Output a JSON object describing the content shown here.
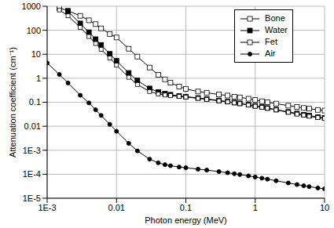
{
  "chart_data": {
    "type": "line",
    "x_label": "Photon energy (MeV)",
    "y_label": "Attenuation coefficient (cm⁻¹)",
    "log": true,
    "grid": true,
    "legend": "upper right",
    "xlim": [
      0.001,
      10
    ],
    "xticks": [
      {
        "value": 0.001,
        "label": "1E-3"
      },
      0.01,
      0.1,
      1,
      10
    ],
    "ylim": [
      1e-05,
      1000
    ],
    "yticks": [
      {
        "value": 1e-05,
        "label": "1E-5"
      },
      {
        "value": 0.0001,
        "label": "1E-4"
      },
      {
        "value": 0.001,
        "label": "1E-3"
      },
      0.01,
      0.1,
      1,
      10,
      100,
      1000
    ],
    "x": [
      0.001,
      0.0015,
      0.002,
      0.003,
      0.004,
      0.005,
      0.006,
      0.008,
      0.01,
      0.015,
      0.02,
      0.03,
      0.04,
      0.05,
      0.06,
      0.08,
      0.1,
      0.15,
      0.2,
      0.3,
      0.4,
      0.5,
      0.6,
      0.8,
      1,
      1.25,
      1.5,
      2,
      3,
      4,
      5,
      6,
      8,
      10
    ],
    "series": [
      {
        "name": "Bone",
        "color": "#000000",
        "marker": "square-open",
        "values": [
          null,
          850,
          650,
          400,
          260,
          180,
          120,
          70,
          50,
          17,
          8,
          2.8,
          1.4,
          0.9,
          0.65,
          0.45,
          0.36,
          0.28,
          0.25,
          0.21,
          0.19,
          0.17,
          0.16,
          0.14,
          0.125,
          0.11,
          0.1,
          0.088,
          0.072,
          0.064,
          0.058,
          0.054,
          0.048,
          0.045
        ]
      },
      {
        "name": "Water",
        "color": "#000000",
        "marker": "square",
        "values": [
          null,
          null,
          617,
          193,
          83,
          42.6,
          24.6,
          10.4,
          5.33,
          1.67,
          0.81,
          0.376,
          0.268,
          0.227,
          0.206,
          0.184,
          0.171,
          0.151,
          0.137,
          0.119,
          0.106,
          0.0969,
          0.0896,
          0.0787,
          0.0707,
          0.0632,
          0.0575,
          0.0494,
          0.0397,
          0.034,
          0.0303,
          0.0277,
          0.0243,
          0.0222
        ]
      },
      {
        "name": "Fet",
        "color": "#000000",
        "marker": "square-open",
        "values": [
          null,
          700,
          400,
          130,
          55,
          28,
          16,
          7,
          3.5,
          1.1,
          0.55,
          0.28,
          0.22,
          0.2,
          0.19,
          0.175,
          0.165,
          0.145,
          0.132,
          0.115,
          0.103,
          0.094,
          0.087,
          0.076,
          0.068,
          0.061,
          0.056,
          0.048,
          0.038,
          0.032,
          0.029,
          0.026,
          0.023,
          0.021
        ]
      },
      {
        "name": "Air",
        "color": "#000000",
        "marker": "circle",
        "values": [
          4.35,
          1.44,
          0.636,
          0.196,
          0.0938,
          0.0485,
          0.0282,
          0.012,
          0.00617,
          0.00194,
          0.000937,
          0.000426,
          0.000299,
          0.000251,
          0.000226,
          0.0002,
          0.000186,
          0.000163,
          0.000149,
          0.000129,
          0.000115,
          0.000105,
          9.71e-05,
          8.52e-05,
          7.66e-05,
          6.85e-05,
          6.24e-05,
          5.36e-05,
          4.32e-05,
          3.71e-05,
          3.31e-05,
          3.04e-05,
          2.68e-05,
          2.46e-05
        ]
      }
    ]
  }
}
